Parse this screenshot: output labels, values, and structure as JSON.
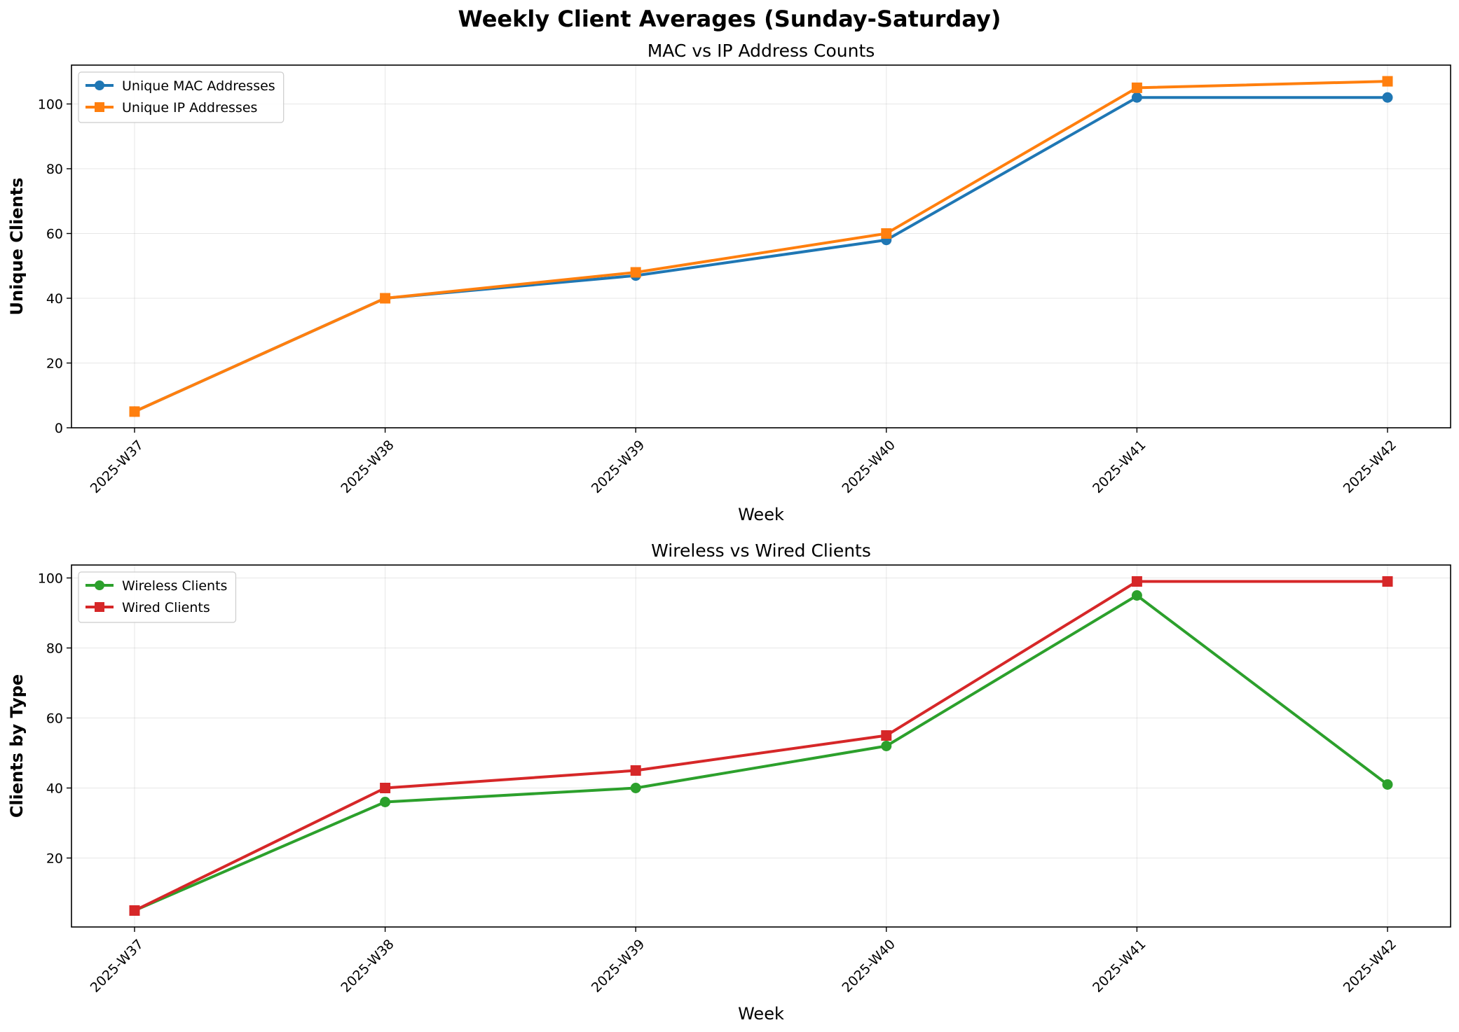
{
  "figure": {
    "title": "Weekly Client Averages (Sunday-Saturday)"
  },
  "chart_data": [
    {
      "type": "line",
      "title": "MAC vs IP Address Counts",
      "xlabel": "Week",
      "ylabel": "Unique Clients",
      "categories": [
        "2025-W37",
        "2025-W38",
        "2025-W39",
        "2025-W40",
        "2025-W41",
        "2025-W42"
      ],
      "ylim": [
        0,
        112
      ],
      "yticks": [
        0,
        20,
        40,
        60,
        80,
        100
      ],
      "grid": true,
      "legend": "top-left",
      "series": [
        {
          "name": "Unique MAC Addresses",
          "values": [
            5,
            40,
            47,
            58,
            102,
            102
          ],
          "color": "#1f77b4",
          "marker": "circle"
        },
        {
          "name": "Unique IP Addresses",
          "values": [
            5,
            40,
            48,
            60,
            105,
            107
          ],
          "color": "#ff7f0e",
          "marker": "square"
        }
      ]
    },
    {
      "type": "line",
      "title": "Wireless vs Wired Clients",
      "xlabel": "Week",
      "ylabel": "Clients by Type",
      "categories": [
        "2025-W37",
        "2025-W38",
        "2025-W39",
        "2025-W40",
        "2025-W41",
        "2025-W42"
      ],
      "ylim": [
        0.3,
        103.7
      ],
      "yticks": [
        20,
        40,
        60,
        80,
        100
      ],
      "grid": true,
      "legend": "top-left",
      "series": [
        {
          "name": "Wireless Clients",
          "values": [
            5,
            36,
            40,
            52,
            95,
            41
          ],
          "color": "#2ca02c",
          "marker": "circle"
        },
        {
          "name": "Wired Clients",
          "values": [
            5,
            40,
            45,
            55,
            99,
            99
          ],
          "color": "#d62728",
          "marker": "square"
        }
      ]
    }
  ]
}
